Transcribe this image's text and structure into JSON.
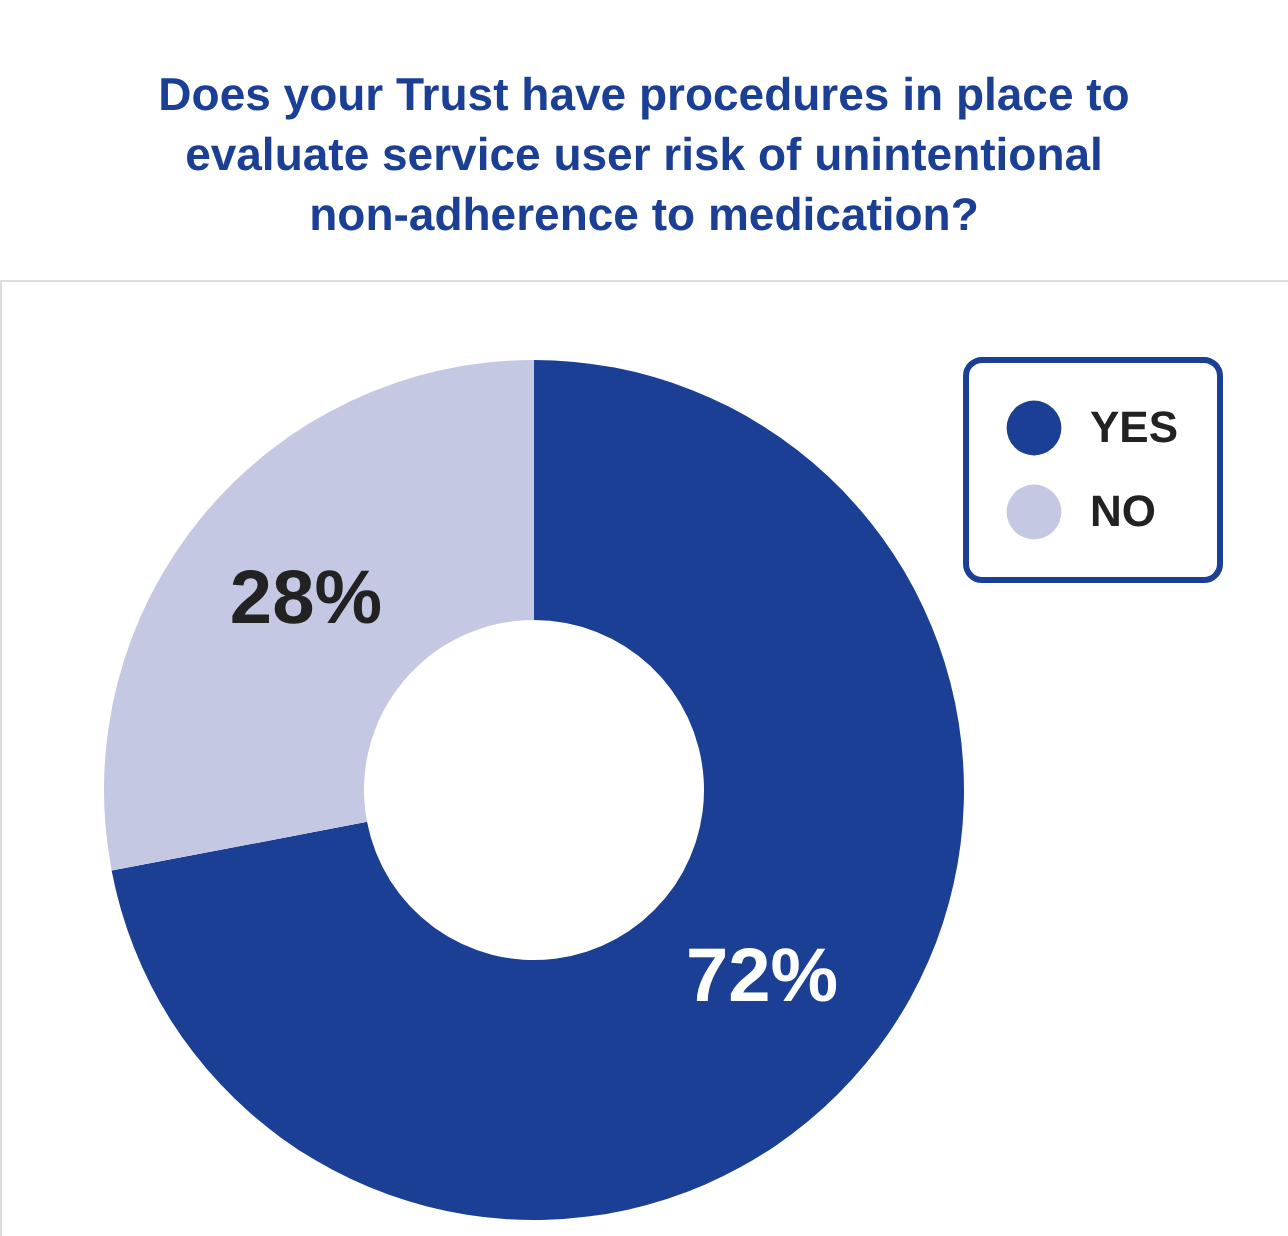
{
  "chart_data": {
    "type": "donut",
    "title": "Does your Trust have procedures in place to evaluate service user risk of unintentional non-adherence to medication?",
    "categories": [
      "YES",
      "NO"
    ],
    "values": [
      72,
      28
    ],
    "colors": [
      "#1b3f94",
      "#c5c8e2"
    ],
    "value_labels": [
      "72%",
      "28%"
    ],
    "legend": "top right"
  }
}
